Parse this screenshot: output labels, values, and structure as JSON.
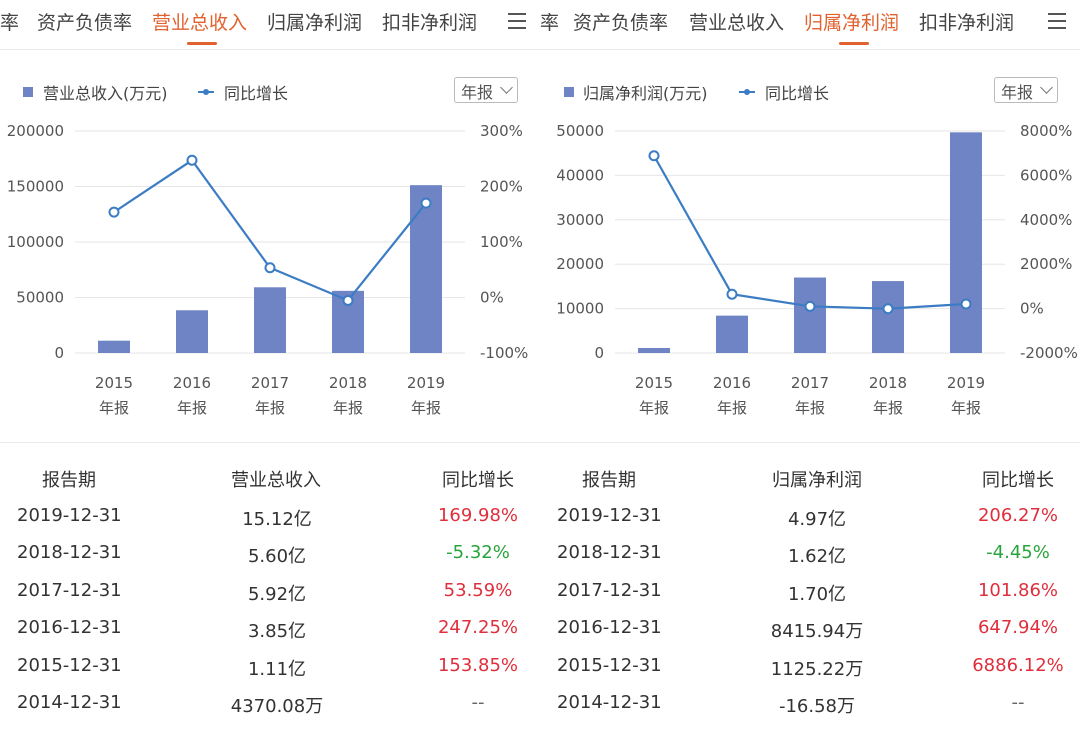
{
  "colors": {
    "accent": "#e2622f",
    "bar": "#6f84c4",
    "line": "#3b7cc4",
    "positive": "#e02f3c",
    "negative": "#28a43c"
  },
  "panels": [
    {
      "tabs": [
        "率",
        "资产负债率",
        "营业总收入",
        "归属净利润",
        "扣非净利润"
      ],
      "active_tab": 2,
      "menu_icon": "menu-icon",
      "legend": {
        "bar_label": "营业总收入(万元)",
        "line_label": "同比增长"
      },
      "period_select": "年报",
      "chart_data": {
        "type": "bar",
        "categories": [
          "2015",
          "2016",
          "2017",
          "2018",
          "2019"
        ],
        "category_sublabel": "年报",
        "series": [
          {
            "name": "营业总收入(万元)",
            "type": "bar",
            "axis": "left",
            "values": [
              11100,
              38500,
              59200,
              56000,
              151200
            ]
          },
          {
            "name": "同比增长",
            "type": "line",
            "axis": "right",
            "values": [
              153.85,
              247.25,
              53.59,
              -5.32,
              169.98
            ]
          }
        ],
        "y_left": {
          "min": 0,
          "max": 200000,
          "ticks": [
            0,
            50000,
            100000,
            150000,
            200000
          ],
          "tick_labels": [
            "0",
            "50000",
            "100000",
            "150000",
            "200000"
          ]
        },
        "y_right": {
          "min": -100,
          "max": 300,
          "ticks": [
            -100,
            0,
            100,
            200,
            300
          ],
          "tick_labels": [
            "-100%",
            "0%",
            "100%",
            "200%",
            "300%"
          ]
        },
        "grid": true,
        "legend_position": "top-left"
      },
      "table": {
        "headers": [
          "报告期",
          "营业总收入",
          "同比增长"
        ],
        "rows": [
          {
            "date": "2019-12-31",
            "value": "15.12亿",
            "growth": "169.98%",
            "dir": "pos"
          },
          {
            "date": "2018-12-31",
            "value": "5.60亿",
            "growth": "-5.32%",
            "dir": "neg"
          },
          {
            "date": "2017-12-31",
            "value": "5.92亿",
            "growth": "53.59%",
            "dir": "pos"
          },
          {
            "date": "2016-12-31",
            "value": "3.85亿",
            "growth": "247.25%",
            "dir": "pos"
          },
          {
            "date": "2015-12-31",
            "value": "1.11亿",
            "growth": "153.85%",
            "dir": "pos"
          },
          {
            "date": "2014-12-31",
            "value": "4370.08万",
            "growth": "--",
            "dir": "nul"
          }
        ]
      }
    },
    {
      "tabs": [
        "率",
        "资产负债率",
        "营业总收入",
        "归属净利润",
        "扣非净利润"
      ],
      "active_tab": 3,
      "menu_icon": "menu-icon",
      "legend": {
        "bar_label": "归属净利润(万元)",
        "line_label": "同比增长"
      },
      "period_select": "年报",
      "chart_data": {
        "type": "bar",
        "categories": [
          "2015",
          "2016",
          "2017",
          "2018",
          "2019"
        ],
        "category_sublabel": "年报",
        "series": [
          {
            "name": "归属净利润(万元)",
            "type": "bar",
            "axis": "left",
            "values": [
              1125.22,
              8415.94,
              17000,
              16200,
              49700
            ]
          },
          {
            "name": "同比增长",
            "type": "line",
            "axis": "right",
            "values": [
              6886.12,
              647.94,
              101.86,
              -4.45,
              206.27
            ]
          }
        ],
        "y_left": {
          "min": 0,
          "max": 50000,
          "ticks": [
            0,
            10000,
            20000,
            30000,
            40000,
            50000
          ],
          "tick_labels": [
            "0",
            "10000",
            "20000",
            "30000",
            "40000",
            "50000"
          ]
        },
        "y_right": {
          "min": -2000,
          "max": 8000,
          "ticks": [
            -2000,
            0,
            2000,
            4000,
            6000,
            8000
          ],
          "tick_labels": [
            "-2000%",
            "0%",
            "2000%",
            "4000%",
            "6000%",
            "8000%"
          ]
        },
        "grid": true,
        "legend_position": "top-left"
      },
      "table": {
        "headers": [
          "报告期",
          "归属净利润",
          "同比增长"
        ],
        "rows": [
          {
            "date": "2019-12-31",
            "value": "4.97亿",
            "growth": "206.27%",
            "dir": "pos"
          },
          {
            "date": "2018-12-31",
            "value": "1.62亿",
            "growth": "-4.45%",
            "dir": "neg"
          },
          {
            "date": "2017-12-31",
            "value": "1.70亿",
            "growth": "101.86%",
            "dir": "pos"
          },
          {
            "date": "2016-12-31",
            "value": "8415.94万",
            "growth": "647.94%",
            "dir": "pos"
          },
          {
            "date": "2015-12-31",
            "value": "1125.22万",
            "growth": "6886.12%",
            "dir": "pos"
          },
          {
            "date": "2014-12-31",
            "value": "-16.58万",
            "growth": "--",
            "dir": "nul"
          }
        ]
      }
    }
  ]
}
